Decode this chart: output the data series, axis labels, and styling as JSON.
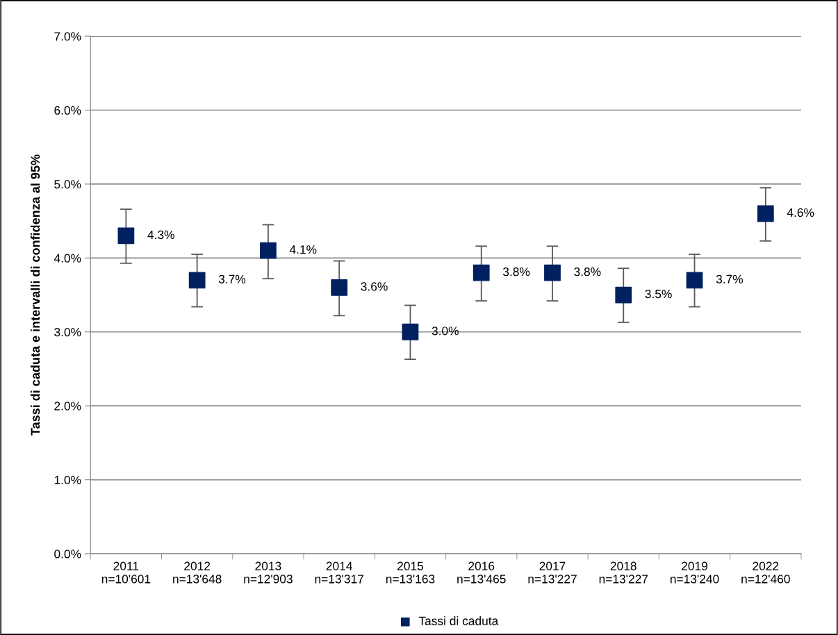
{
  "chart_data": {
    "type": "scatter",
    "ylabel": "Tassi di caduta e intervalli di confidenza al 95%",
    "categories": [
      "2011\nn=10'601",
      "2012\nn=13'648",
      "2013\nn=12'903",
      "2014\nn=13'317",
      "2015\nn=13'163",
      "2016\nn=13'465",
      "2017\nn=13'227",
      "2018\nn=13'227",
      "2019\nn=13'240",
      "2022\nn=12'460"
    ],
    "series": [
      {
        "name": "Tassi di caduta",
        "color": "#002060",
        "values": [
          4.3,
          3.7,
          4.1,
          3.6,
          3.0,
          3.8,
          3.8,
          3.5,
          3.7,
          4.6
        ],
        "errors": [
          [
            3.93,
            4.66
          ],
          [
            3.34,
            4.05
          ],
          [
            3.72,
            4.45
          ],
          [
            3.22,
            3.96
          ],
          [
            2.63,
            3.36
          ],
          [
            3.42,
            4.16
          ],
          [
            3.42,
            4.16
          ],
          [
            3.13,
            3.86
          ],
          [
            3.34,
            4.05
          ],
          [
            4.23,
            4.95
          ]
        ],
        "value_labels": [
          "4.3%",
          "3.7%",
          "4.1%",
          "3.6%",
          "3.0%",
          "3.8%",
          "3.8%",
          "3.5%",
          "3.7%",
          "4.6%"
        ]
      }
    ],
    "ylim": [
      0,
      7
    ],
    "yticks": [
      {
        "value": 0,
        "label": "0.0%"
      },
      {
        "value": 1,
        "label": "1.0%"
      },
      {
        "value": 2,
        "label": "2.0%"
      },
      {
        "value": 3,
        "label": "3.0%"
      },
      {
        "value": 4,
        "label": "4.0%"
      },
      {
        "value": 5,
        "label": "5.0%"
      },
      {
        "value": 6,
        "label": "6.0%"
      },
      {
        "value": 7,
        "label": "7.0%"
      }
    ],
    "grid": "y",
    "legend": "bottom",
    "marker": "square"
  }
}
